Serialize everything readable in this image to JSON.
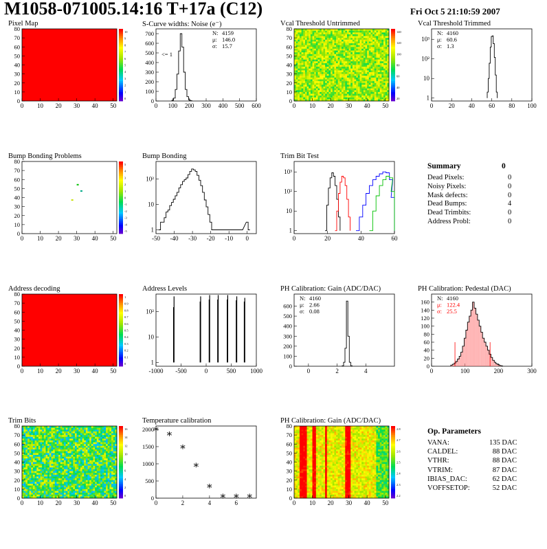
{
  "header": {
    "title": "M1058-071005.14:16 T+17a (C12)",
    "date": "Fri Oct  5 21:10:59 2007"
  },
  "colors": {
    "red": "#ff0000",
    "black": "#000000",
    "blue": "#0000ff",
    "green": "#00c000"
  },
  "chart_data": [
    {
      "id": "pixel-map",
      "type": "heatmap",
      "title": "Pixel Map",
      "x": {
        "range": [
          0,
          52
        ],
        "ticks": [
          "0",
          "10",
          "20",
          "30",
          "40",
          "50"
        ]
      },
      "y": {
        "range": [
          0,
          80
        ],
        "ticks": [
          "0",
          "10",
          "20",
          "30",
          "40",
          "50",
          "60",
          "70",
          "80"
        ]
      },
      "fill": "uniform-red",
      "zscale": {
        "ticks": [
          "10",
          "9",
          "8",
          "7",
          "6",
          "5",
          "4",
          "3",
          "2",
          "1",
          "0"
        ]
      }
    },
    {
      "id": "scurve-noise",
      "type": "histogram",
      "title": "S-Curve widths: Noise (e⁻)",
      "x": {
        "range": [
          0,
          600
        ],
        "ticks": [
          "0",
          "100",
          "200",
          "300",
          "400",
          "500",
          "600"
        ]
      },
      "y": {
        "range": [
          0,
          750
        ],
        "ticks": [
          "0",
          "100",
          "200",
          "300",
          "400",
          "500",
          "600",
          "700"
        ]
      },
      "stats": [
        {
          "label": "N:",
          "value": "4159"
        },
        {
          "label": "μ:",
          "value": "146.0"
        },
        {
          "label": "σ:",
          "value": "15.7"
        }
      ],
      "annotation": "<= 1",
      "bins": [
        [
          100,
          8
        ],
        [
          110,
          30
        ],
        [
          120,
          120
        ],
        [
          130,
          280
        ],
        [
          140,
          520
        ],
        [
          150,
          700
        ],
        [
          160,
          560
        ],
        [
          170,
          300
        ],
        [
          180,
          120
        ],
        [
          190,
          45
        ],
        [
          200,
          12
        ],
        [
          210,
          3
        ]
      ]
    },
    {
      "id": "vcal-untrimmed",
      "type": "heatmap",
      "title": "Vcal Threshold Untrimmed",
      "x": {
        "range": [
          0,
          52
        ],
        "ticks": [
          "0",
          "10",
          "20",
          "30",
          "40",
          "50"
        ]
      },
      "y": {
        "range": [
          0,
          80
        ],
        "ticks": [
          "0",
          "10",
          "20",
          "30",
          "40",
          "50",
          "60",
          "70",
          "80"
        ]
      },
      "fill": "noise-yellow-green",
      "zscale": {
        "ticks": [
          "140",
          "120",
          "100",
          "80",
          "60",
          "40",
          "20"
        ]
      }
    },
    {
      "id": "vcal-trimmed",
      "type": "histogram",
      "title": "Vcal Threshold Trimmed",
      "log_y": true,
      "x": {
        "range": [
          0,
          100
        ],
        "ticks": [
          "0",
          "20",
          "40",
          "60",
          "80",
          "100"
        ]
      },
      "y": {
        "ticks": [
          "1",
          "10",
          "10²",
          "10³"
        ]
      },
      "stats": [
        {
          "label": "N:",
          "value": "4160"
        },
        {
          "label": "μ:",
          "value": "60.6"
        },
        {
          "label": "σ:",
          "value": "1.3"
        }
      ],
      "bins": [
        [
          56,
          2
        ],
        [
          57,
          10
        ],
        [
          58,
          60
        ],
        [
          59,
          400
        ],
        [
          60,
          1400
        ],
        [
          61,
          1500
        ],
        [
          62,
          600
        ],
        [
          63,
          120
        ],
        [
          64,
          15
        ],
        [
          65,
          2
        ]
      ]
    },
    {
      "id": "bump-problems",
      "type": "heatmap",
      "title": "Bump Bonding Problems",
      "x": {
        "range": [
          0,
          52
        ],
        "ticks": [
          "0",
          "10",
          "20",
          "30",
          "40",
          "50"
        ]
      },
      "y": {
        "range": [
          0,
          80
        ],
        "ticks": [
          "0",
          "10",
          "20",
          "30",
          "40",
          "50",
          "60",
          "70",
          "80"
        ]
      },
      "points": [
        [
          30,
          55,
          "#00c000"
        ],
        [
          32,
          48,
          "#00aa88"
        ],
        [
          27,
          38,
          "#c8e000"
        ]
      ],
      "zscale": {
        "ticks": [
          "5",
          "4",
          "3",
          "2",
          "1",
          "0",
          "-1",
          "-2",
          "-3",
          "-4",
          "-5"
        ]
      }
    },
    {
      "id": "bump-bonding",
      "type": "histogram",
      "title": "Bump Bonding",
      "log_y": true,
      "x": {
        "range": [
          -50,
          5
        ],
        "ticks": [
          "-50",
          "-40",
          "-30",
          "-20",
          "-10",
          "0"
        ]
      },
      "y": {
        "ticks": [
          "1",
          "10",
          "10²"
        ]
      },
      "bins": [
        [
          -48,
          1
        ],
        [
          -47,
          2
        ],
        [
          -46,
          2
        ],
        [
          -45,
          3
        ],
        [
          -44,
          5
        ],
        [
          -43,
          6
        ],
        [
          -42,
          9
        ],
        [
          -41,
          12
        ],
        [
          -40,
          16
        ],
        [
          -39,
          22
        ],
        [
          -38,
          30
        ],
        [
          -37,
          45
        ],
        [
          -36,
          60
        ],
        [
          -35,
          80
        ],
        [
          -34,
          95
        ],
        [
          -33,
          110
        ],
        [
          -32,
          150
        ],
        [
          -31,
          200
        ],
        [
          -30,
          250
        ],
        [
          -29,
          230
        ],
        [
          -28,
          200
        ],
        [
          -27,
          140
        ],
        [
          -26,
          90
        ],
        [
          -25,
          55
        ],
        [
          -24,
          30
        ],
        [
          -23,
          15
        ],
        [
          -22,
          8
        ],
        [
          -21,
          4
        ],
        [
          -20,
          2
        ],
        [
          -19,
          1
        ],
        [
          -3,
          1
        ],
        [
          0,
          2
        ],
        [
          1,
          1
        ]
      ]
    },
    {
      "id": "trim-bit-test",
      "type": "histogram",
      "title": "Trim Bit Test",
      "log_y": true,
      "x": {
        "range": [
          0,
          60
        ],
        "ticks": [
          "0",
          "20",
          "40",
          "60"
        ]
      },
      "y": {
        "ticks": [
          "1",
          "10",
          "10²",
          "10³"
        ]
      },
      "series": [
        {
          "color": "#000000",
          "bins": [
            [
              19,
              1
            ],
            [
              20,
              20
            ],
            [
              21,
              150
            ],
            [
              22,
              500
            ],
            [
              23,
              900
            ],
            [
              24,
              600
            ],
            [
              25,
              200
            ],
            [
              26,
              40
            ],
            [
              27,
              5
            ]
          ]
        },
        {
          "color": "#ff0000",
          "bins": [
            [
              25,
              1
            ],
            [
              26,
              10
            ],
            [
              27,
              80
            ],
            [
              28,
              300
            ],
            [
              29,
              600
            ],
            [
              30,
              500
            ],
            [
              31,
              200
            ],
            [
              32,
              40
            ],
            [
              33,
              5
            ]
          ]
        },
        {
          "color": "#0000ff",
          "bins": [
            [
              38,
              1
            ],
            [
              40,
              5
            ],
            [
              42,
              20
            ],
            [
              44,
              80
            ],
            [
              46,
              200
            ],
            [
              48,
              400
            ],
            [
              50,
              600
            ],
            [
              52,
              800
            ],
            [
              54,
              1000
            ],
            [
              56,
              900
            ],
            [
              58,
              400
            ],
            [
              59,
              50
            ]
          ]
        },
        {
          "color": "#00c000",
          "bins": [
            [
              46,
              1
            ],
            [
              48,
              10
            ],
            [
              50,
              60
            ],
            [
              52,
              200
            ],
            [
              54,
              400
            ],
            [
              56,
              600
            ],
            [
              58,
              500
            ],
            [
              59,
              100
            ]
          ]
        }
      ]
    },
    {
      "id": "address-decoding",
      "type": "heatmap",
      "title": "Address decoding",
      "x": {
        "range": [
          0,
          52
        ],
        "ticks": [
          "0",
          "10",
          "20",
          "30",
          "40",
          "50"
        ]
      },
      "y": {
        "range": [
          0,
          80
        ],
        "ticks": [
          "0",
          "10",
          "20",
          "30",
          "40",
          "50",
          "60",
          "70",
          "80"
        ]
      },
      "fill": "uniform-red",
      "zscale": {
        "ticks": [
          "1",
          "0.9",
          "0.8",
          "0.7",
          "0.6",
          "0.5",
          "0.4",
          "0.3",
          "0.2",
          "0.1",
          "0"
        ]
      }
    },
    {
      "id": "address-levels",
      "type": "histogram",
      "title": "Address Levels",
      "log_y": true,
      "x": {
        "range": [
          -1000,
          1000
        ],
        "ticks": [
          "-1000",
          "-500",
          "0",
          "500",
          "1000"
        ]
      },
      "y": {
        "ticks": [
          "1",
          "10",
          "10²"
        ]
      },
      "bins": [
        [
          -650,
          150
        ],
        [
          -640,
          400
        ],
        [
          -120,
          250
        ],
        [
          -110,
          400
        ],
        [
          60,
          300
        ],
        [
          70,
          450
        ],
        [
          230,
          300
        ],
        [
          240,
          450
        ],
        [
          420,
          300
        ],
        [
          430,
          450
        ],
        [
          600,
          280
        ],
        [
          610,
          400
        ],
        [
          760,
          250
        ],
        [
          770,
          350
        ]
      ]
    },
    {
      "id": "ph-gain",
      "type": "histogram",
      "title": "PH Calibration: Gain (ADC/DAC)",
      "x": {
        "range": [
          -1,
          6
        ],
        "ticks": [
          "0",
          "2",
          "4"
        ]
      },
      "y": {
        "range": [
          0,
          720
        ],
        "ticks": [
          "0",
          "100",
          "200",
          "300",
          "400",
          "500",
          "600"
        ]
      },
      "stats": [
        {
          "label": "N:",
          "value": "4160"
        },
        {
          "label": "μ:",
          "value": "2.66"
        },
        {
          "label": "σ:",
          "value": "0.08"
        }
      ],
      "bins": [
        [
          2.4,
          5
        ],
        [
          2.5,
          40
        ],
        [
          2.6,
          180
        ],
        [
          2.7,
          650
        ],
        [
          2.8,
          300
        ],
        [
          2.9,
          40
        ],
        [
          3.0,
          5
        ]
      ]
    },
    {
      "id": "ph-pedestal",
      "type": "histogram",
      "title": "PH Calibration: Pedestal (DAC)",
      "x": {
        "range": [
          0,
          300
        ],
        "ticks": [
          "0",
          "100",
          "200",
          "300"
        ]
      },
      "y": {
        "range": [
          0,
          180
        ],
        "ticks": [
          "0",
          "20",
          "40",
          "60",
          "80",
          "100",
          "120",
          "140",
          "160"
        ]
      },
      "stats": [
        {
          "label": "N:",
          "value": "4160"
        },
        {
          "label": "μ:",
          "value": "122.4"
        },
        {
          "label": "σ:",
          "value": "25.5"
        }
      ],
      "fit_lines": [
        70,
        175
      ],
      "bins": [
        [
          60,
          3
        ],
        [
          65,
          5
        ],
        [
          70,
          8
        ],
        [
          75,
          12
        ],
        [
          80,
          18
        ],
        [
          85,
          25
        ],
        [
          90,
          35
        ],
        [
          95,
          50
        ],
        [
          100,
          70
        ],
        [
          105,
          90
        ],
        [
          110,
          110
        ],
        [
          115,
          125
        ],
        [
          120,
          140
        ],
        [
          125,
          160
        ],
        [
          130,
          145
        ],
        [
          135,
          130
        ],
        [
          140,
          115
        ],
        [
          145,
          100
        ],
        [
          150,
          85
        ],
        [
          155,
          70
        ],
        [
          160,
          60
        ],
        [
          165,
          50
        ],
        [
          170,
          40
        ],
        [
          175,
          30
        ],
        [
          180,
          22
        ],
        [
          185,
          15
        ],
        [
          190,
          10
        ],
        [
          195,
          6
        ],
        [
          200,
          4
        ],
        [
          205,
          2
        ],
        [
          210,
          1
        ]
      ]
    },
    {
      "id": "trim-bits",
      "type": "heatmap",
      "title": "Trim Bits",
      "x": {
        "range": [
          0,
          52
        ],
        "ticks": [
          "0",
          "10",
          "20",
          "30",
          "40",
          "50"
        ]
      },
      "y": {
        "range": [
          0,
          80
        ],
        "ticks": [
          "0",
          "10",
          "20",
          "30",
          "40",
          "50",
          "60",
          "70",
          "80"
        ]
      },
      "fill": "noise-green-yellow",
      "zscale": {
        "ticks": [
          "16",
          "14",
          "12",
          "10",
          "8",
          "6",
          "4",
          "2",
          "0"
        ]
      }
    },
    {
      "id": "temperature",
      "type": "scatter",
      "title": "Temperature calibration",
      "x": {
        "range": [
          0,
          7.5
        ],
        "ticks": [
          "0",
          "2",
          "4",
          "6"
        ]
      },
      "y": {
        "range": [
          0,
          2100
        ],
        "ticks": [
          "0",
          "500",
          "1000",
          "1500",
          "2000"
        ]
      },
      "points": [
        [
          0,
          2000
        ],
        [
          1,
          1860
        ],
        [
          2,
          1480
        ],
        [
          3,
          950
        ],
        [
          4,
          340
        ],
        [
          5,
          50
        ],
        [
          6,
          50
        ],
        [
          7,
          50
        ]
      ]
    },
    {
      "id": "ph-gain-map",
      "type": "heatmap",
      "title": "PH Calibration: Gain (ADC/DAC)",
      "x": {
        "range": [
          0,
          52
        ],
        "ticks": [
          "0",
          "10",
          "20",
          "30",
          "40",
          "50"
        ]
      },
      "y": {
        "range": [
          0,
          80
        ],
        "ticks": [
          "0",
          "10",
          "20",
          "30",
          "40",
          "50",
          "60",
          "70",
          "80"
        ]
      },
      "fill": "column-stripes",
      "zscale": {
        "ticks": [
          "2.8",
          "2.7",
          "2.6",
          "2.5",
          "2.4",
          "2.3",
          "2.2"
        ]
      }
    }
  ],
  "summary": {
    "title": "Summary",
    "value": "0",
    "rows": [
      {
        "label": "Dead Pixels:",
        "value": "0"
      },
      {
        "label": "Noisy Pixels:",
        "value": "0"
      },
      {
        "label": "Mask defects:",
        "value": "0"
      },
      {
        "label": "Dead Bumps:",
        "value": "4"
      },
      {
        "label": "Dead Trimbits:",
        "value": "0"
      },
      {
        "label": "Address Probl:",
        "value": "0"
      }
    ]
  },
  "op_params": {
    "title": "Op. Parameters",
    "rows": [
      {
        "label": "VANA:",
        "value": "135 DAC"
      },
      {
        "label": "CALDEL:",
        "value": "88 DAC"
      },
      {
        "label": "VTHR:",
        "value": "88 DAC"
      },
      {
        "label": "VTRIM:",
        "value": "87 DAC"
      },
      {
        "label": "IBIAS_DAC:",
        "value": "62 DAC"
      },
      {
        "label": "VOFFSETOP:",
        "value": "52 DAC"
      }
    ]
  }
}
